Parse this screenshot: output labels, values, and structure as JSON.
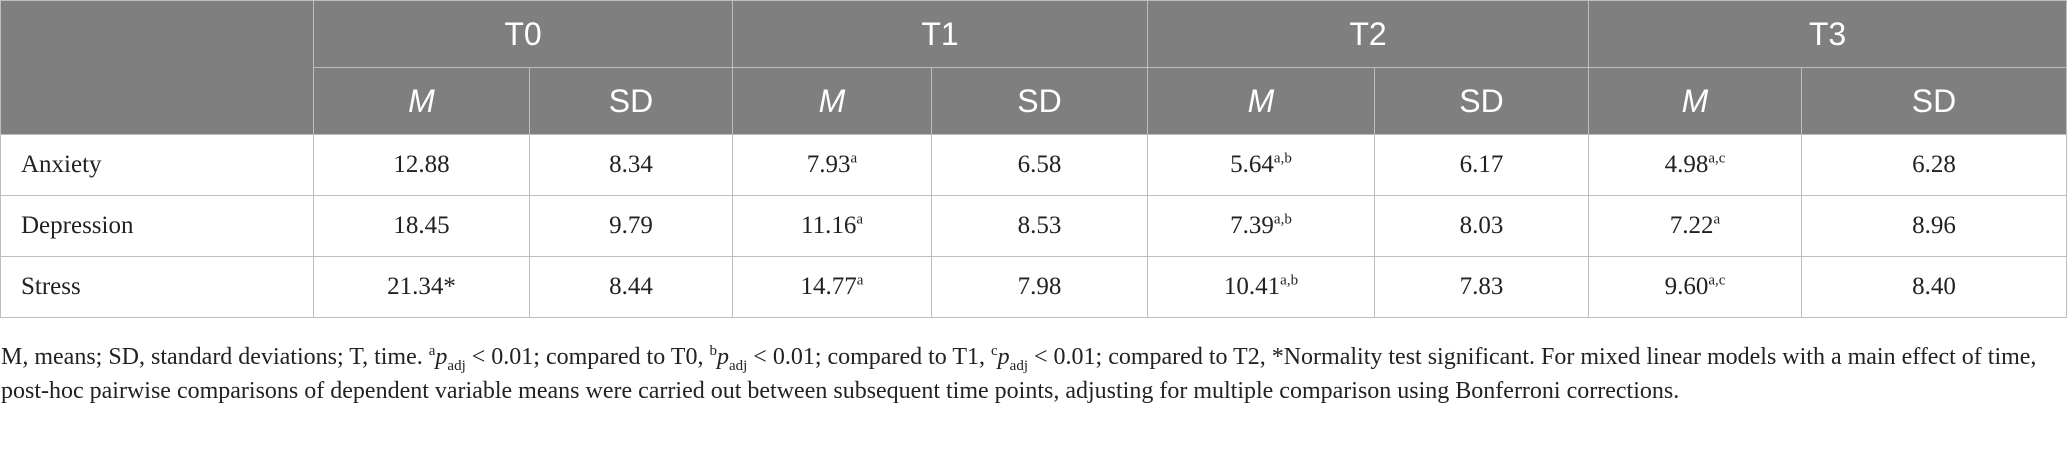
{
  "table": {
    "time_headers": [
      "T0",
      "T1",
      "T2",
      "T3"
    ],
    "stat_headers": [
      "M",
      "SD"
    ],
    "rows": [
      {
        "label": "Anxiety",
        "cells": [
          {
            "v": "12.88",
            "s": ""
          },
          {
            "v": "8.34",
            "s": ""
          },
          {
            "v": "7.93",
            "s": "a"
          },
          {
            "v": "6.58",
            "s": ""
          },
          {
            "v": "5.64",
            "s": "a,b"
          },
          {
            "v": "6.17",
            "s": ""
          },
          {
            "v": "4.98",
            "s": "a,c"
          },
          {
            "v": "6.28",
            "s": ""
          }
        ]
      },
      {
        "label": "Depression",
        "cells": [
          {
            "v": "18.45",
            "s": ""
          },
          {
            "v": "9.79",
            "s": ""
          },
          {
            "v": "11.16",
            "s": "a"
          },
          {
            "v": "8.53",
            "s": ""
          },
          {
            "v": "7.39",
            "s": "a,b"
          },
          {
            "v": "8.03",
            "s": ""
          },
          {
            "v": "7.22",
            "s": "a"
          },
          {
            "v": "8.96",
            "s": ""
          }
        ]
      },
      {
        "label": "Stress",
        "cells": [
          {
            "v": "21.34*",
            "s": ""
          },
          {
            "v": "8.44",
            "s": ""
          },
          {
            "v": "14.77",
            "s": "a"
          },
          {
            "v": "7.98",
            "s": ""
          },
          {
            "v": "10.41",
            "s": "a,b"
          },
          {
            "v": "7.83",
            "s": ""
          },
          {
            "v": "9.60",
            "s": "a,c"
          },
          {
            "v": "8.40",
            "s": ""
          }
        ]
      }
    ]
  },
  "footnote": {
    "intro": "M, means; SD, standard deviations; T, time. ",
    "marks": [
      "a",
      "b",
      "c"
    ],
    "p": "p",
    "adj": "adj",
    "lt": " < 0.01; ",
    "cmp": [
      "compared to T0, ",
      "compared to T1, ",
      "compared to T2, "
    ],
    "rest": "*Normality test significant. For mixed linear models with a main effect of time, post-hoc pairwise comparisons of dependent variable means were carried out between subsequent time points, adjusting for multiple comparison using Bonferroni corrections."
  }
}
